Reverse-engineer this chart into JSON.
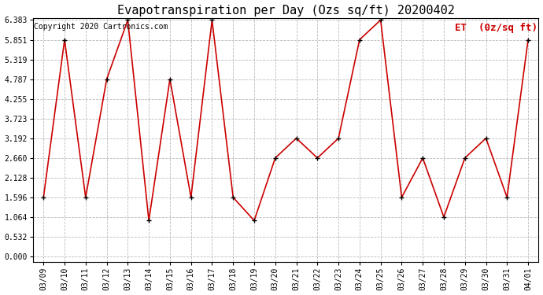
{
  "title": "Evapotranspiration per Day (Ozs sq/ft) 20200402",
  "copyright": "Copyright 2020 Cartronics.com",
  "legend_label": "ET  (0z/sq ft)",
  "dates": [
    "03/09",
    "03/10",
    "03/11",
    "03/12",
    "03/13",
    "03/14",
    "03/15",
    "03/16",
    "03/17",
    "03/18",
    "03/19",
    "03/20",
    "03/21",
    "03/22",
    "03/23",
    "03/24",
    "03/25",
    "03/26",
    "03/27",
    "03/28",
    "03/29",
    "03/30",
    "03/31",
    "04/01"
  ],
  "values": [
    1.596,
    5.851,
    1.596,
    4.787,
    6.383,
    0.97,
    4.787,
    1.596,
    6.383,
    1.596,
    0.97,
    2.66,
    3.192,
    2.66,
    3.192,
    5.851,
    6.383,
    1.596,
    2.66,
    1.064,
    2.66,
    3.192,
    1.596,
    5.851
  ],
  "line_color": "#cc0000",
  "marker_color": "#000000",
  "bg_color": "#ffffff",
  "grid_color": "#bbbbbb",
  "yticks": [
    0.0,
    0.532,
    1.064,
    1.596,
    2.128,
    2.66,
    3.192,
    3.723,
    4.255,
    4.787,
    5.319,
    5.851,
    6.383
  ],
  "ylim_min": 0.0,
  "ylim_max": 6.383,
  "title_fontsize": 11,
  "copyright_fontsize": 7,
  "legend_fontsize": 9,
  "tick_fontsize": 7,
  "ytick_fontsize": 7
}
